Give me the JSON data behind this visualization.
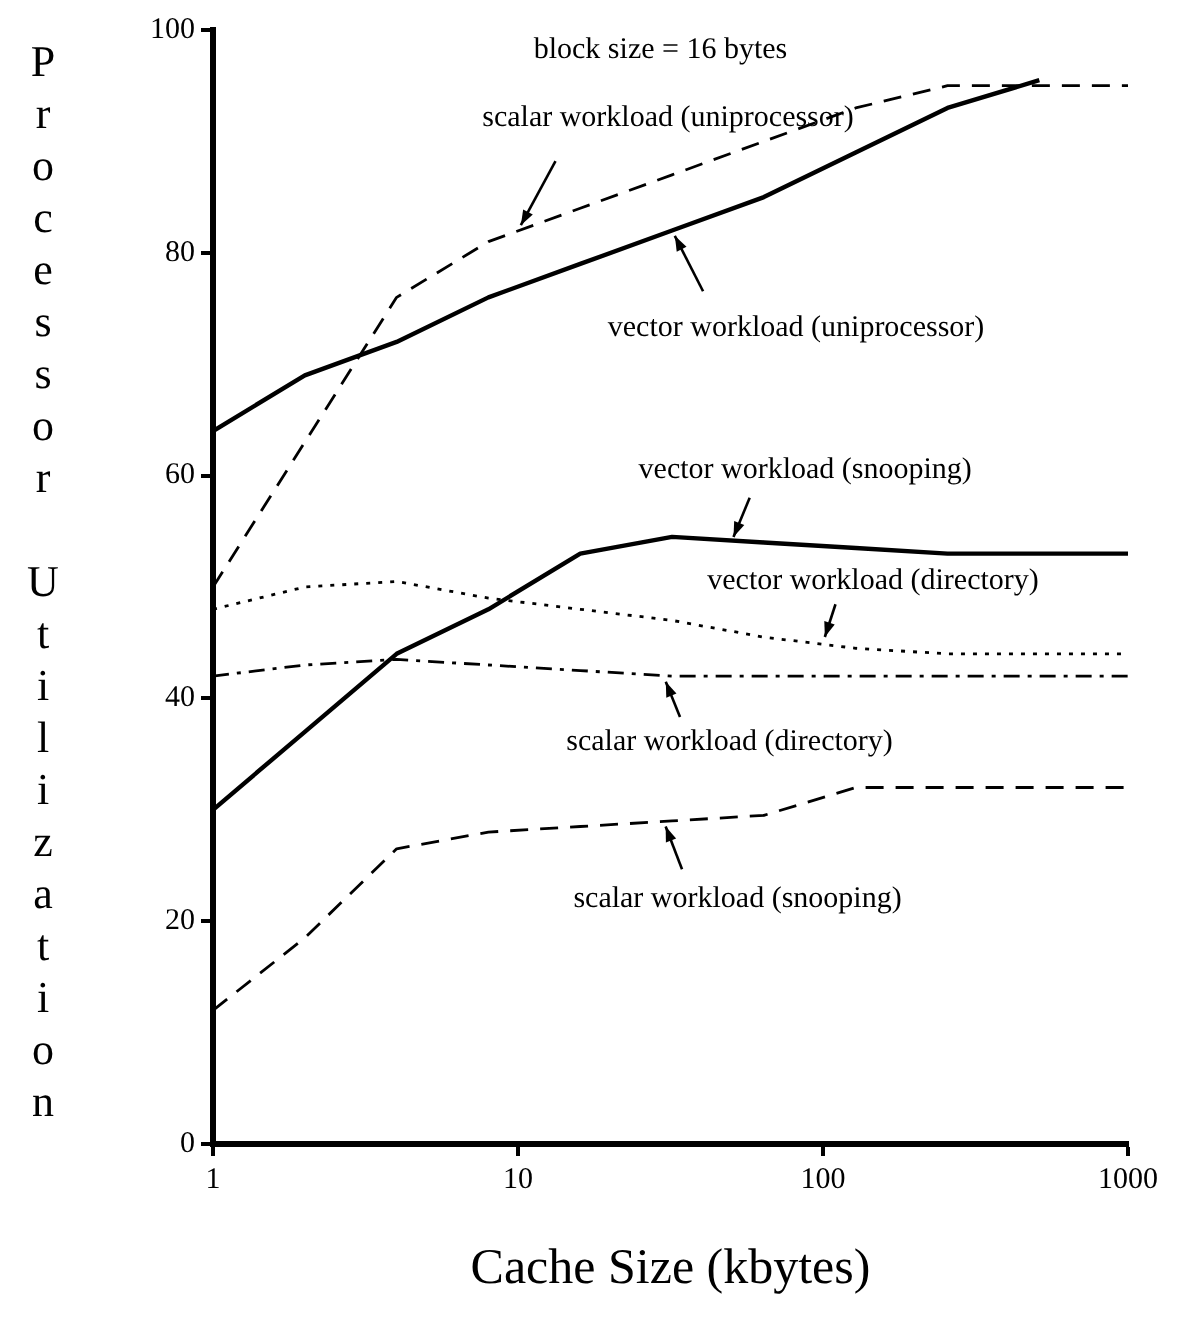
{
  "chart_data": {
    "type": "line",
    "xlabel": "Cache Size (kbytes)",
    "ylabel": "Processor Utilization",
    "log": "x",
    "xlim": [
      1,
      1000
    ],
    "xticks": [
      1,
      10,
      100,
      1000
    ],
    "ylim": [
      0,
      100
    ],
    "yticks": [
      0,
      20,
      40,
      60,
      80,
      100
    ],
    "grid": false,
    "legend": false,
    "marker": "none",
    "series": [
      {
        "color": "#000000",
        "line_style": "dashed",
        "x": [
          1,
          2,
          4,
          8,
          16,
          32,
          64,
          128,
          256,
          512,
          1000
        ],
        "values": [
          50,
          63,
          76,
          81,
          84,
          87,
          90,
          93,
          95,
          95,
          95
        ]
      },
      {
        "color": "#000000",
        "line_style": "solid",
        "x": [
          1,
          2,
          4,
          8,
          16,
          32,
          64,
          128,
          256,
          512
        ],
        "values": [
          64,
          69,
          72,
          76,
          79,
          82,
          85,
          89,
          93,
          95.5
        ]
      },
      {
        "color": "#000000",
        "line_style": "solid",
        "x": [
          1,
          2,
          4,
          8,
          16,
          32,
          64,
          128,
          256,
          512,
          1000
        ],
        "values": [
          30,
          37,
          44,
          48,
          53,
          54.5,
          54,
          53.5,
          53,
          53,
          53
        ]
      },
      {
        "color": "#000000",
        "line_style": "dotted",
        "x": [
          1,
          2,
          4,
          8,
          16,
          32,
          64,
          128,
          256,
          512,
          1000
        ],
        "values": [
          48,
          50,
          50.5,
          49,
          48,
          47,
          45.5,
          44.5,
          44,
          44,
          44
        ]
      },
      {
        "color": "#000000",
        "line_style": "dashdot",
        "x": [
          1,
          2,
          4,
          8,
          16,
          32,
          64,
          128,
          256,
          512,
          1000
        ],
        "values": [
          42,
          43,
          43.5,
          43,
          42.5,
          42,
          42,
          42,
          42,
          42,
          42
        ]
      },
      {
        "color": "#000000",
        "line_style": "dashed",
        "x": [
          1,
          2,
          4,
          8,
          16,
          32,
          64,
          128,
          256,
          512,
          1000
        ],
        "values": [
          12,
          18.5,
          26.5,
          28,
          28.5,
          29,
          29.5,
          32,
          32,
          32,
          32
        ]
      }
    ],
    "annotations": [
      "block size = 16 bytes",
      {
        "text": "scalar workload (uniprocessor)",
        "x": 10,
        "y": 82
      },
      {
        "text": "vector workload (uniprocessor)",
        "x": 32,
        "y": 82
      },
      {
        "text": "vector workload (snooping)",
        "x": 50,
        "y": 54
      },
      {
        "text": "vector workload (directory)",
        "x": 100,
        "y": 45
      },
      {
        "text": "scalar workload (directory)",
        "x": 30,
        "y": 42
      },
      {
        "text": "scalar workload (snooping)",
        "x": 30,
        "y": 29
      }
    ]
  }
}
